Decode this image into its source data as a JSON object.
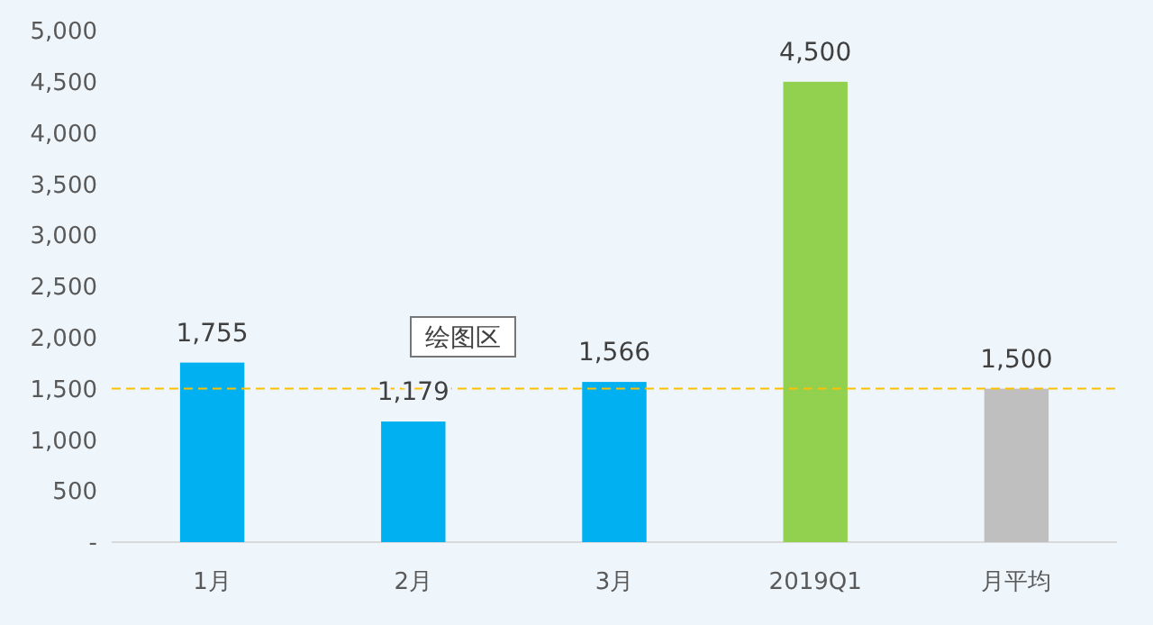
{
  "chart_data": {
    "type": "bar",
    "categories": [
      "1月",
      "2月",
      "3月",
      "2019Q1",
      "月平均"
    ],
    "values": [
      1755,
      1179,
      1566,
      4500,
      1500
    ],
    "colors": [
      "#00b0f0",
      "#00b0f0",
      "#00b0f0",
      "#92d050",
      "#bfbfbf"
    ],
    "ylim": [
      0,
      5000
    ],
    "yticks": [
      {
        "value": 0,
        "label": "-"
      },
      {
        "value": 500,
        "label": "500"
      },
      {
        "value": 1000,
        "label": "1,000"
      },
      {
        "value": 1500,
        "label": "1,500"
      },
      {
        "value": 2000,
        "label": "2,000"
      },
      {
        "value": 2500,
        "label": "2,500"
      },
      {
        "value": 3000,
        "label": "3,000"
      },
      {
        "value": 3500,
        "label": "3,500"
      },
      {
        "value": 4000,
        "label": "4,000"
      },
      {
        "value": 4500,
        "label": "4,500"
      },
      {
        "value": 5000,
        "label": "5,000"
      }
    ],
    "grid": false,
    "value_labels": [
      "1,755",
      "1,179",
      "1,566",
      "4,500",
      "1,500"
    ],
    "ref_lines": [
      {
        "axis": "y",
        "value": 1500,
        "color": "#ffc000",
        "line_style": "dashed"
      }
    ],
    "annotations": [
      "绘图区"
    ]
  }
}
